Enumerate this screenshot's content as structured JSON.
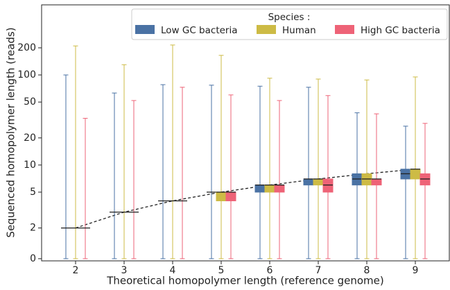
{
  "chart_data": {
    "type": "box",
    "x_label": "Theoretical homopolymer length (reference genome)",
    "y_label": "Sequenced homopolymer length (reads)",
    "legend_title": "Species :",
    "legend_position": "upper right",
    "y_scale": "symlog",
    "linthresh": 1,
    "linscale": 0.04,
    "x": [
      2,
      3,
      4,
      5,
      6,
      7,
      8,
      9
    ],
    "xlim": [
      1.3,
      9.7
    ],
    "xticks": [
      2,
      3,
      4,
      5,
      6,
      7,
      8,
      9
    ],
    "ylim": [
      -0.6,
      600
    ],
    "yticks": [
      0,
      2,
      5,
      10,
      20,
      50,
      100,
      200
    ],
    "series": [
      {
        "name": "Low GC bacteria",
        "color": "#4a72a4",
        "values": [
          [
            0,
            2,
            2,
            2,
            100
          ],
          [
            0,
            3,
            3,
            3,
            63
          ],
          [
            0,
            4,
            4,
            4,
            78
          ],
          [
            0,
            5,
            5,
            5,
            77
          ],
          [
            0,
            5,
            6,
            6,
            75
          ],
          [
            0,
            6,
            7,
            7,
            73
          ],
          [
            0,
            6,
            7,
            8,
            38
          ],
          [
            0,
            7,
            8,
            9,
            27
          ]
        ]
      },
      {
        "name": "Human",
        "color": "#cdbb45",
        "values": [
          [
            0,
            2,
            2,
            2,
            210
          ],
          [
            0,
            3,
            3,
            3,
            130
          ],
          [
            0,
            4,
            4,
            4,
            215
          ],
          [
            0,
            4,
            5,
            5,
            165
          ],
          [
            0,
            5,
            6,
            6,
            92
          ],
          [
            0,
            6,
            7,
            7,
            90
          ],
          [
            0,
            6,
            7,
            8,
            88
          ],
          [
            0,
            7,
            9,
            9,
            95
          ]
        ]
      },
      {
        "name": "High GC bacteria",
        "color": "#ee6377",
        "values": [
          [
            0,
            2,
            2,
            2,
            33
          ],
          [
            0,
            3,
            3,
            3,
            52
          ],
          [
            0,
            4,
            4,
            4,
            73
          ],
          [
            0,
            4,
            5,
            5,
            60
          ],
          [
            0,
            5,
            6,
            6,
            52
          ],
          [
            0,
            5,
            6,
            7,
            59
          ],
          [
            0,
            6,
            7,
            7,
            37
          ],
          [
            0,
            6,
            7,
            8,
            29
          ]
        ]
      }
    ],
    "reference_line": {
      "values": [
        2,
        3,
        4,
        5,
        6,
        7,
        8,
        9
      ],
      "color": "#222",
      "dashed": true
    }
  }
}
